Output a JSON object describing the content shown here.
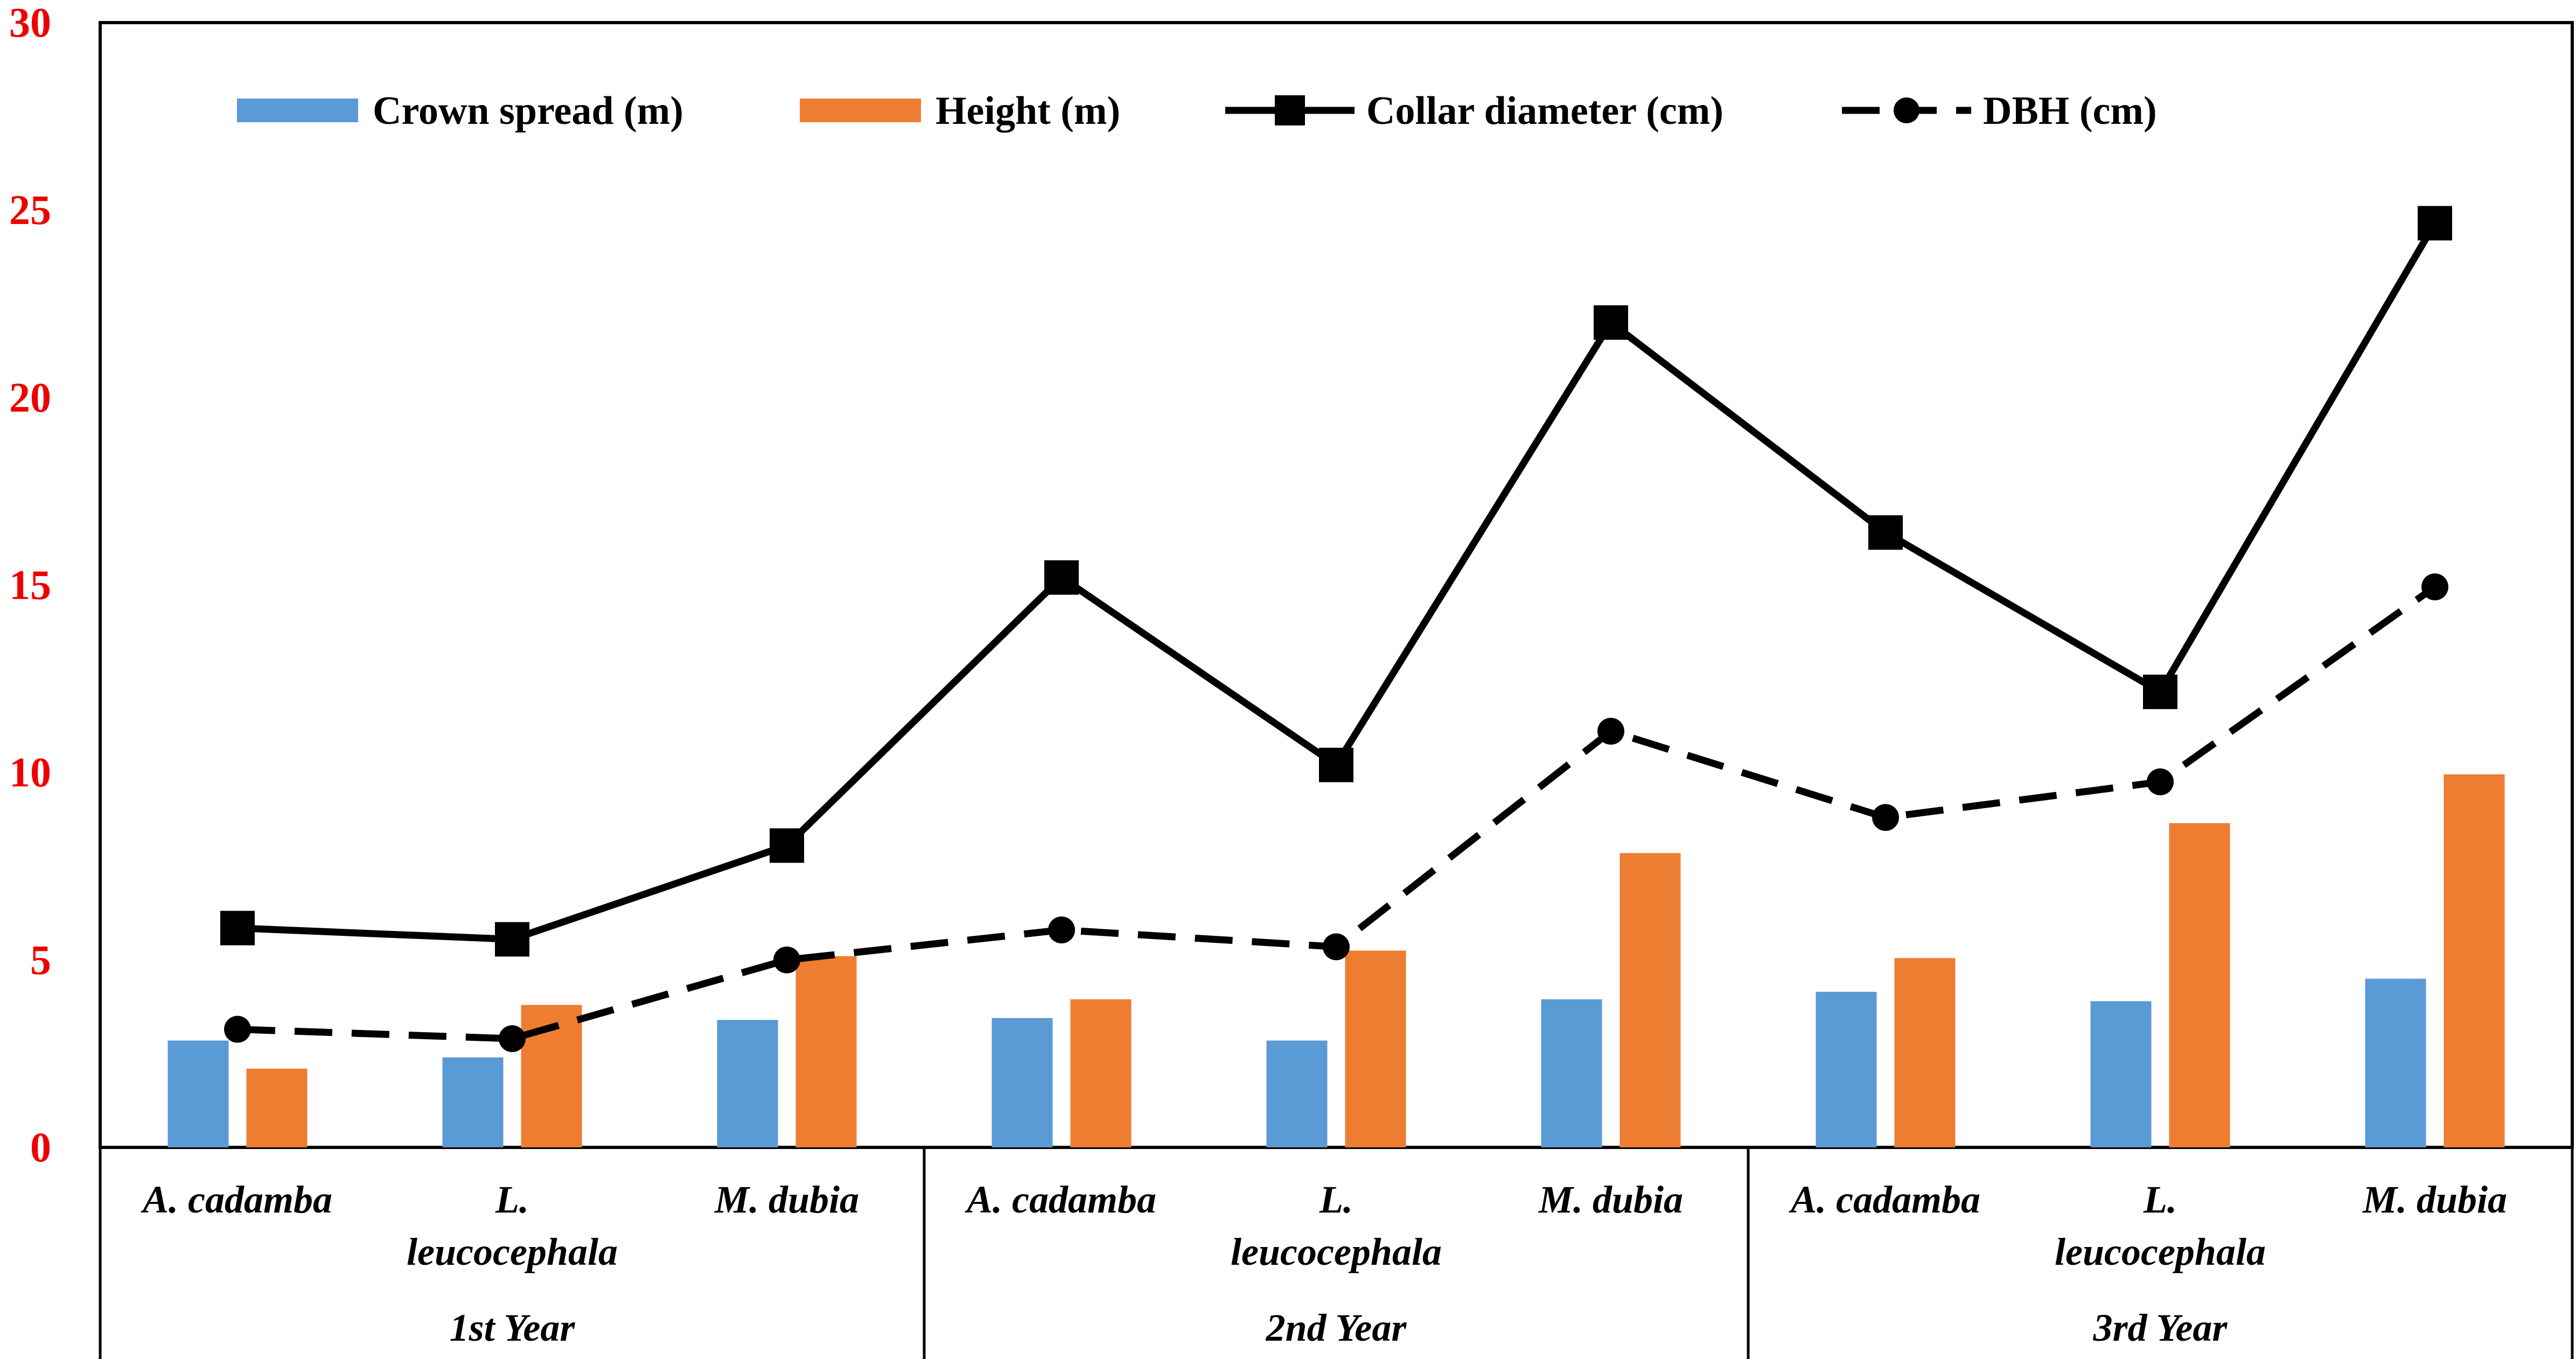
{
  "chart_data": {
    "type": "bar",
    "title": "",
    "xlabel": "",
    "ylabel": "",
    "ylim": [
      0,
      30
    ],
    "yticks": [
      0,
      5,
      10,
      15,
      20,
      25,
      30
    ],
    "grid": false,
    "legend_position": "top",
    "groups": [
      {
        "label": "1st Year",
        "categories": [
          "A. cadamba",
          "L. leucocephala",
          "M. dubia"
        ]
      },
      {
        "label": "2nd Year",
        "categories": [
          "A. cadamba",
          "L. leucocephala",
          "M. dubia"
        ]
      },
      {
        "label": "3rd Year",
        "categories": [
          "A. cadamba",
          "L. leucocephala",
          "M. dubia"
        ]
      }
    ],
    "category_lines": {
      "A. cadamba": [
        "A. cadamba"
      ],
      "L. leucocephala": [
        "L.",
        "leucocephala"
      ],
      "M. dubia": [
        "M. dubia"
      ]
    },
    "series": [
      {
        "name": "Crown spread (m)",
        "kind": "bar",
        "color": "#5b9bd5",
        "values": [
          2.85,
          2.4,
          3.4,
          3.45,
          2.85,
          3.95,
          4.15,
          3.9,
          4.5
        ]
      },
      {
        "name": "Height (m)",
        "kind": "bar",
        "color": "#ed7d31",
        "values": [
          2.1,
          3.8,
          5.1,
          3.95,
          5.25,
          7.85,
          5.05,
          8.65,
          9.95
        ]
      },
      {
        "name": "Collar diameter (cm)",
        "kind": "line",
        "style": "solid",
        "marker": "square",
        "color": "#000000",
        "values": [
          5.85,
          5.55,
          8.05,
          15.2,
          10.2,
          22.0,
          16.4,
          12.15,
          24.65
        ]
      },
      {
        "name": "DBH  (cm)",
        "kind": "line",
        "style": "dashed",
        "marker": "circle",
        "color": "#000000",
        "values": [
          3.15,
          2.9,
          5.0,
          5.8,
          5.35,
          11.1,
          8.8,
          9.75,
          14.95
        ]
      }
    ]
  }
}
